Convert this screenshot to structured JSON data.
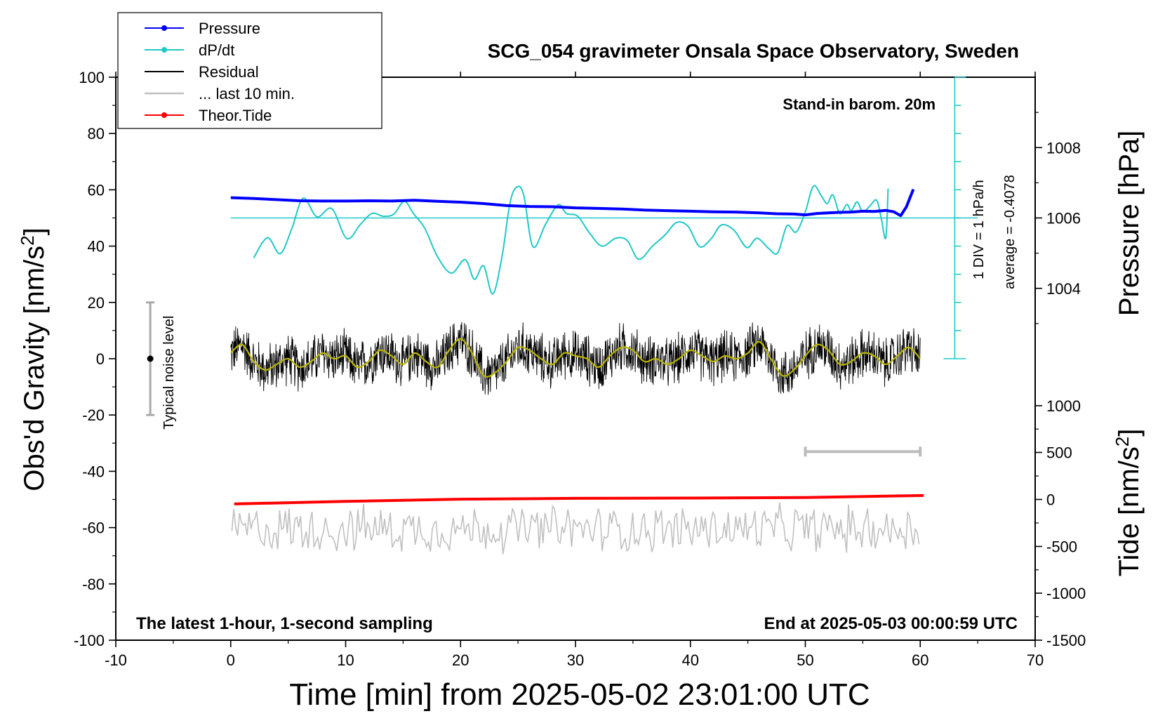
{
  "chart_data": {
    "type": "line",
    "title": "SCG_054 gravimeter Onsala Space Observatory, Sweden",
    "xlabel": "Time [min] from 2025-05-02 23:01:00 UTC",
    "ylabel_left": "Obs'd Gravity [nm/s",
    "ylabel_left_sup": "2",
    "ylabel_left_end": "]",
    "ylabel_right_top": "Pressure [hPa]",
    "ylabel_right_bottom": "Tide [nm/s",
    "ylabel_right_bottom_sup": "2",
    "ylabel_right_bottom_end": "]",
    "xlim": [
      -10,
      70
    ],
    "ylim": [
      -100,
      100
    ],
    "x_ticks": [
      "-10",
      "0",
      "10",
      "20",
      "30",
      "40",
      "50",
      "60",
      "70"
    ],
    "x_tick_values": [
      -10,
      0,
      10,
      20,
      30,
      40,
      50,
      60,
      70
    ],
    "y_ticks": [
      "100",
      "80",
      "60",
      "40",
      "20",
      "0",
      "-20",
      "-40",
      "-60",
      "-80",
      "-100"
    ],
    "y_tick_values": [
      100,
      80,
      60,
      40,
      20,
      0,
      -20,
      -40,
      -60,
      -80,
      -100
    ],
    "pressure_axis": {
      "ticks": [
        "1008",
        "1006",
        "1004"
      ],
      "tick_values": [
        1008,
        1006,
        1004
      ],
      "gravity_equiv": [
        75,
        50,
        25
      ]
    },
    "tide_axis": {
      "ticks": [
        "1000",
        "500",
        "0",
        "-500",
        "-1000",
        "-1500"
      ],
      "tick_values": [
        1000,
        500,
        0,
        -500,
        -1000,
        -1500
      ],
      "gravity_equiv": [
        -16.7,
        -33.3,
        -50,
        -66.7,
        -83.3,
        -100
      ]
    },
    "legend": {
      "placement": "top-left",
      "entries": [
        {
          "label": "Pressure",
          "color": "#0000ff",
          "marker": true
        },
        {
          "label": "dP/dt",
          "color": "#22c8c8",
          "marker": true
        },
        {
          "label": "Residual",
          "color": "#000000",
          "marker": false
        },
        {
          "label": "... last 10 min.",
          "color": "#c0c0c0",
          "marker": false
        },
        {
          "label": "Theor.Tide",
          "color": "#ff0000",
          "marker": true
        }
      ]
    },
    "annotations": {
      "barom": "Stand-in barom. 20m",
      "div": "1 DIV = 1 hPa/h",
      "average": "average = -0.4078",
      "noise": "Typical noise level",
      "latest": "The latest 1-hour, 1-second sampling",
      "end": "End at 2025-05-03 00:00:59 UTC"
    },
    "noise_bar": {
      "x": -7,
      "y": 0,
      "ylow": -20,
      "yhigh": 20
    },
    "last10_bar": {
      "x0": 50,
      "x1": 60,
      "y": -33
    },
    "dpdt_zero_line": 50,
    "dpdt_scale_bar": {
      "x": 63,
      "y0": 0,
      "y1": 100
    },
    "series": {
      "pressure": {
        "x": [
          0,
          2,
          4,
          6,
          8,
          10,
          12,
          14,
          16,
          18,
          20,
          22,
          24,
          26,
          28,
          30,
          32,
          34,
          36,
          38,
          40,
          42,
          44,
          46,
          47.5,
          49,
          50,
          51,
          52,
          53,
          54,
          55,
          56,
          57,
          57.7,
          58.3,
          58.8,
          59.4
        ],
        "y": [
          57.2,
          56.9,
          56.5,
          56.1,
          56.0,
          56.0,
          56.1,
          56.0,
          56.3,
          55.9,
          55.6,
          55.1,
          54.4,
          54.1,
          54.0,
          53.6,
          53.4,
          53.2,
          52.8,
          52.6,
          52.4,
          52.2,
          52.1,
          51.8,
          51.5,
          51.4,
          51.1,
          51.6,
          51.8,
          52.0,
          52.1,
          52.4,
          52.3,
          52.7,
          52.2,
          50.8,
          54.0,
          60.2
        ]
      },
      "dpdt": {
        "x": [
          2,
          3.2,
          4.3,
          5.3,
          6.3,
          7.5,
          8.8,
          10.1,
          11.3,
          12.3,
          13.3,
          14.2,
          15.1,
          15.9,
          16.9,
          18.0,
          19.2,
          20.4,
          21.2,
          22.0,
          22.8,
          23.6,
          24.3,
          24.9,
          25.5,
          26.3,
          27.4,
          28.5,
          29.2,
          30.2,
          31.2,
          32.3,
          33.5,
          34.5,
          35.5,
          36.7,
          37.8,
          38.8,
          39.8,
          40.8,
          41.8,
          42.7,
          43.8,
          44.9,
          45.8,
          46.8,
          47.6,
          48.4,
          49.2,
          50.0,
          50.7,
          51.4,
          51.9,
          52.4,
          53.0,
          53.6,
          54.0,
          54.5,
          55.0,
          55.6,
          56.2,
          56.6,
          57.0,
          57.2
        ],
        "y": [
          35.8,
          43.0,
          37.3,
          46.0,
          57.0,
          50.4,
          53.3,
          42.7,
          47.8,
          51.6,
          50.6,
          51.4,
          55.9,
          51.6,
          46.2,
          36.2,
          30.4,
          35.2,
          28.2,
          33.0,
          23.0,
          36.1,
          55.3,
          61.0,
          58.1,
          39.8,
          47.8,
          54.7,
          51.6,
          50.6,
          44.8,
          40.0,
          42.8,
          42.0,
          35.3,
          40.0,
          44.0,
          48.4,
          47.0,
          39.8,
          42.6,
          47.5,
          45.6,
          39.5,
          42.8,
          39.2,
          37.6,
          47.2,
          45.0,
          52.2,
          61.3,
          57.8,
          55.1,
          58.2,
          51.6,
          54.8,
          52.6,
          55.7,
          52.2,
          54.2,
          56.3,
          50.0,
          42.9,
          60.4
        ]
      },
      "residual_smooth": {
        "x": [
          0,
          1,
          2,
          3,
          4,
          5,
          6,
          7,
          8,
          9,
          10,
          11,
          12,
          13,
          14,
          15,
          16,
          17,
          18,
          19,
          20,
          21,
          22,
          23,
          24,
          25,
          26,
          27,
          28,
          29,
          30,
          31,
          32,
          33,
          34,
          35,
          36,
          37,
          38,
          39,
          40,
          41,
          42,
          43,
          44,
          45,
          46,
          47,
          48,
          49,
          50,
          51,
          52,
          53,
          54,
          55,
          56,
          57,
          58,
          59,
          60
        ],
        "y": [
          2,
          5,
          -1,
          -4,
          -2,
          0,
          -3,
          -1,
          2,
          0,
          1,
          -3,
          -1,
          3,
          1,
          -2,
          2,
          -1,
          -3,
          3,
          7,
          2,
          -6,
          -5,
          -1,
          4,
          3,
          0,
          -2,
          2,
          1,
          0,
          -3,
          1,
          4,
          3,
          -1,
          0,
          -2,
          0,
          3,
          1,
          -1,
          1,
          0,
          2,
          6,
          0,
          -6,
          -4,
          1,
          5,
          3,
          -2,
          -1,
          2,
          1,
          -2,
          1,
          4,
          0
        ]
      },
      "theor_tide": {
        "x": [
          0.3,
          10,
          20,
          30,
          40,
          50,
          60.3
        ],
        "y": [
          -51.6,
          -50.7,
          -49.9,
          -49.6,
          -49.5,
          -49.3,
          -48.6
        ]
      }
    },
    "noise": {
      "residual_baseline": 0,
      "residual_amp": 9.5,
      "last10_center": -60.5,
      "last10_amp": 7.5
    },
    "colors": {
      "pressure": "#0000ff",
      "dpdt": "#22c8c8",
      "residual": "#000000",
      "residual_smooth": "#b8b400",
      "last10": "#c0c0c0",
      "tide": "#ff0000"
    }
  }
}
